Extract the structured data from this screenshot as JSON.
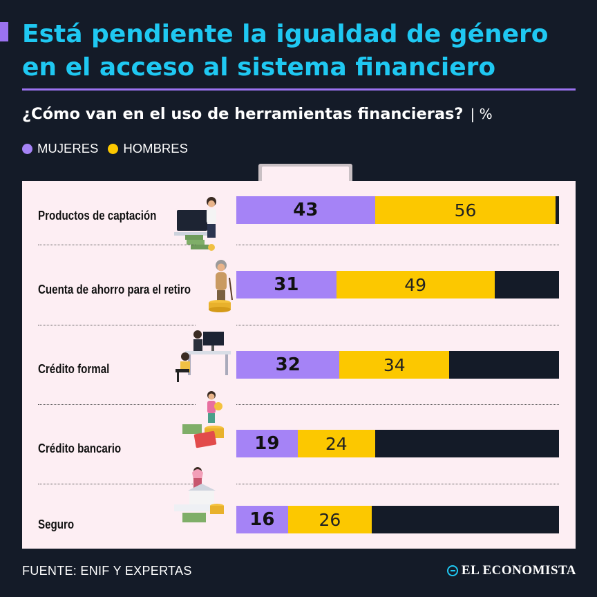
{
  "header": {
    "title_line1": "Está pendiente la igualdad de género",
    "title_line2": "en el acceso al sistema financiero",
    "subtitle": "¿Cómo van en el uso de herramientas financieras?",
    "unit": "| %"
  },
  "legend": {
    "female_label": "MUJERES",
    "male_label": "HOMBRES"
  },
  "colors": {
    "background": "#141b28",
    "title": "#1fc8f2",
    "accent": "#9b72f0",
    "female": "#a583f6",
    "male": "#fcc800",
    "panel": "#fdeef3"
  },
  "chart_data": {
    "type": "bar",
    "orientation": "horizontal",
    "stacked": false,
    "title": "¿Cómo van en el uso de herramientas financieras?",
    "unit": "%",
    "xlim": [
      0,
      100
    ],
    "categories": [
      "Productos de captación",
      "Cuenta de ahorro para el retiro",
      "Crédito formal",
      "Crédito bancario",
      "Seguro"
    ],
    "series": [
      {
        "name": "MUJERES",
        "values": [
          43,
          31,
          32,
          19,
          16
        ]
      },
      {
        "name": "HOMBRES",
        "values": [
          56,
          49,
          34,
          24,
          26
        ]
      }
    ],
    "icons": [
      "person-at-computer-icon",
      "elderly-woman-coins-icon",
      "office-desk-icon",
      "woman-coins-card-icon",
      "family-house-money-icon"
    ]
  },
  "footer": {
    "source": "FUENTE: ENIF Y EXPERTAS",
    "brand": "EL ECONOMISTA"
  }
}
